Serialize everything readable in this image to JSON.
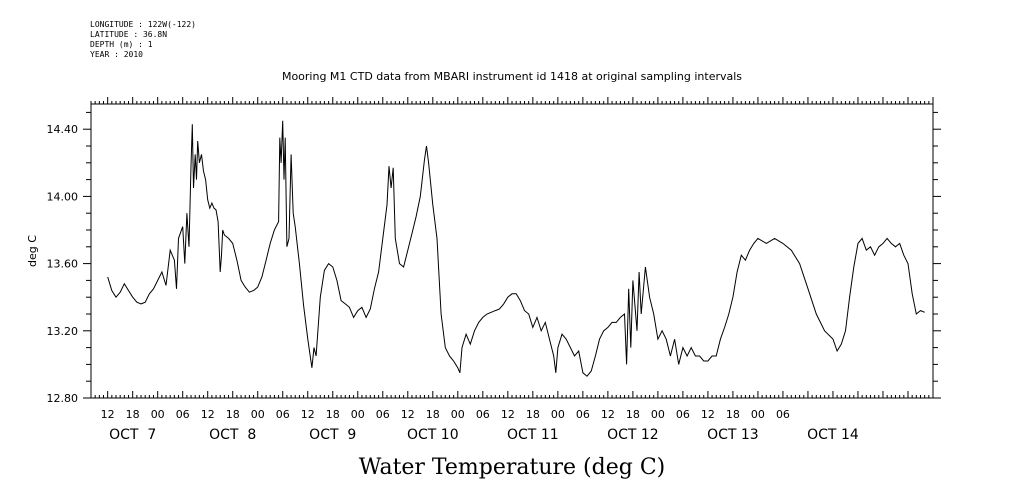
{
  "header": {
    "meta_lines": [
      "LONGITUDE : 122W(-122)",
      "LATITUDE : 36.8N",
      "DEPTH (m) : 1",
      "YEAR : 2010"
    ],
    "title": "Mooring M1 CTD data from MBARI instrument id 1418 at original sampling intervals"
  },
  "chart_data": {
    "type": "line",
    "title": "Mooring M1 CTD data from MBARI instrument id 1418 at original sampling intervals",
    "xlabel": "Water Temperature (deg C)",
    "ylabel": "deg C",
    "ylim": [
      12.8,
      14.55
    ],
    "yticks": [
      "12.80",
      "13.20",
      "13.60",
      "14.00",
      "14.40"
    ],
    "hour_labels": [
      "12",
      "18",
      "00",
      "06",
      "12",
      "18",
      "00",
      "06",
      "12",
      "18",
      "00",
      "06",
      "12",
      "18",
      "00",
      "06",
      "12",
      "18",
      "00",
      "06",
      "12",
      "18",
      "00",
      "06",
      "12",
      "18",
      "00",
      "06"
    ],
    "day_labels": [
      "OCT  7",
      "OCT  8",
      "OCT  9",
      "OCT 10",
      "OCT 11",
      "OCT 12",
      "OCT 13",
      "OCT 14"
    ],
    "grid": false,
    "series": [
      {
        "color": "#000000",
        "points": [
          [
            4,
            13.52
          ],
          [
            5,
            13.44
          ],
          [
            6,
            13.4
          ],
          [
            7,
            13.43
          ],
          [
            8,
            13.48
          ],
          [
            9,
            13.44
          ],
          [
            10,
            13.4
          ],
          [
            11,
            13.37
          ],
          [
            12,
            13.36
          ],
          [
            13,
            13.37
          ],
          [
            14,
            13.42
          ],
          [
            15,
            13.45
          ],
          [
            16,
            13.5
          ],
          [
            17,
            13.55
          ],
          [
            18,
            13.47
          ],
          [
            19,
            13.68
          ],
          [
            20,
            13.62
          ],
          [
            20.5,
            13.45
          ],
          [
            21,
            13.75
          ],
          [
            22,
            13.82
          ],
          [
            22.5,
            13.6
          ],
          [
            23,
            13.9
          ],
          [
            23.5,
            13.7
          ],
          [
            24,
            14.18
          ],
          [
            24.3,
            14.43
          ],
          [
            24.6,
            14.05
          ],
          [
            25,
            14.25
          ],
          [
            25.3,
            14.1
          ],
          [
            25.6,
            14.33
          ],
          [
            26,
            14.2
          ],
          [
            26.5,
            14.25
          ],
          [
            27,
            14.15
          ],
          [
            27.5,
            14.1
          ],
          [
            28,
            13.98
          ],
          [
            28.5,
            13.93
          ],
          [
            29,
            13.96
          ],
          [
            29.5,
            13.93
          ],
          [
            30,
            13.92
          ],
          [
            30.5,
            13.85
          ],
          [
            31,
            13.55
          ],
          [
            31.3,
            13.65
          ],
          [
            31.6,
            13.8
          ],
          [
            32,
            13.77
          ],
          [
            33,
            13.75
          ],
          [
            34,
            13.72
          ],
          [
            35,
            13.62
          ],
          [
            36,
            13.5
          ],
          [
            37,
            13.46
          ],
          [
            38,
            13.43
          ],
          [
            39,
            13.44
          ],
          [
            40,
            13.46
          ],
          [
            41,
            13.52
          ],
          [
            42,
            13.62
          ],
          [
            43,
            13.72
          ],
          [
            44,
            13.8
          ],
          [
            45,
            13.85
          ],
          [
            45.3,
            14.35
          ],
          [
            45.6,
            14.2
          ],
          [
            46,
            14.45
          ],
          [
            46.3,
            14.1
          ],
          [
            46.6,
            14.35
          ],
          [
            47,
            13.7
          ],
          [
            47.5,
            13.75
          ],
          [
            48,
            14.25
          ],
          [
            48.5,
            13.9
          ],
          [
            49,
            13.82
          ],
          [
            50,
            13.6
          ],
          [
            51,
            13.35
          ],
          [
            52,
            13.15
          ],
          [
            53,
            12.98
          ],
          [
            53.5,
            13.1
          ],
          [
            54,
            13.05
          ],
          [
            55,
            13.4
          ],
          [
            56,
            13.56
          ],
          [
            57,
            13.6
          ],
          [
            58,
            13.58
          ],
          [
            59,
            13.5
          ],
          [
            60,
            13.38
          ],
          [
            61,
            13.36
          ],
          [
            62,
            13.34
          ],
          [
            63,
            13.28
          ],
          [
            64,
            13.32
          ],
          [
            65,
            13.34
          ],
          [
            66,
            13.28
          ],
          [
            67,
            13.33
          ],
          [
            68,
            13.45
          ],
          [
            69,
            13.55
          ],
          [
            70,
            13.75
          ],
          [
            71,
            13.95
          ],
          [
            71.5,
            14.18
          ],
          [
            72,
            14.05
          ],
          [
            72.5,
            14.17
          ],
          [
            73,
            13.75
          ],
          [
            74,
            13.6
          ],
          [
            75,
            13.58
          ],
          [
            76,
            13.68
          ],
          [
            77,
            13.78
          ],
          [
            78,
            13.88
          ],
          [
            79,
            14.0
          ],
          [
            80,
            14.22
          ],
          [
            80.5,
            14.3
          ],
          [
            81,
            14.2
          ],
          [
            82,
            13.95
          ],
          [
            83,
            13.75
          ],
          [
            84,
            13.3
          ],
          [
            85,
            13.1
          ],
          [
            86,
            13.05
          ],
          [
            87,
            13.02
          ],
          [
            88,
            12.98
          ],
          [
            88.5,
            12.95
          ],
          [
            89,
            13.1
          ],
          [
            90,
            13.18
          ],
          [
            91,
            13.12
          ],
          [
            92,
            13.2
          ],
          [
            93,
            13.25
          ],
          [
            94,
            13.28
          ],
          [
            95,
            13.3
          ],
          [
            96,
            13.31
          ],
          [
            97,
            13.32
          ],
          [
            98,
            13.33
          ],
          [
            99,
            13.36
          ],
          [
            100,
            13.4
          ],
          [
            101,
            13.42
          ],
          [
            102,
            13.42
          ],
          [
            103,
            13.38
          ],
          [
            104,
            13.32
          ],
          [
            105,
            13.3
          ],
          [
            106,
            13.22
          ],
          [
            107,
            13.28
          ],
          [
            108,
            13.2
          ],
          [
            109,
            13.25
          ],
          [
            110,
            13.15
          ],
          [
            111,
            13.05
          ],
          [
            111.5,
            12.95
          ],
          [
            112,
            13.1
          ],
          [
            113,
            13.18
          ],
          [
            114,
            13.15
          ],
          [
            115,
            13.1
          ],
          [
            116,
            13.05
          ],
          [
            117,
            13.08
          ],
          [
            118,
            12.95
          ],
          [
            119,
            12.93
          ],
          [
            120,
            12.96
          ],
          [
            121,
            13.05
          ],
          [
            122,
            13.15
          ],
          [
            123,
            13.2
          ],
          [
            124,
            13.22
          ],
          [
            125,
            13.25
          ],
          [
            126,
            13.25
          ],
          [
            127,
            13.28
          ],
          [
            128,
            13.3
          ],
          [
            128.5,
            13.0
          ],
          [
            129,
            13.45
          ],
          [
            129.5,
            13.1
          ],
          [
            130,
            13.5
          ],
          [
            131,
            13.2
          ],
          [
            131.5,
            13.55
          ],
          [
            132,
            13.3
          ],
          [
            133,
            13.58
          ],
          [
            134,
            13.4
          ],
          [
            135,
            13.3
          ],
          [
            136,
            13.15
          ],
          [
            137,
            13.2
          ],
          [
            138,
            13.15
          ],
          [
            139,
            13.05
          ],
          [
            140,
            13.15
          ],
          [
            141,
            13.0
          ],
          [
            142,
            13.1
          ],
          [
            143,
            13.05
          ],
          [
            144,
            13.1
          ],
          [
            145,
            13.05
          ],
          [
            146,
            13.05
          ],
          [
            147,
            13.02
          ],
          [
            148,
            13.02
          ],
          [
            149,
            13.05
          ],
          [
            150,
            13.05
          ],
          [
            151,
            13.15
          ],
          [
            152,
            13.22
          ],
          [
            153,
            13.3
          ],
          [
            154,
            13.4
          ],
          [
            155,
            13.55
          ],
          [
            156,
            13.65
          ],
          [
            157,
            13.62
          ],
          [
            158,
            13.68
          ],
          [
            159,
            13.72
          ],
          [
            160,
            13.75
          ],
          [
            162,
            13.72
          ],
          [
            164,
            13.75
          ],
          [
            166,
            13.72
          ],
          [
            168,
            13.68
          ],
          [
            170,
            13.6
          ],
          [
            172,
            13.45
          ],
          [
            174,
            13.3
          ],
          [
            176,
            13.2
          ],
          [
            178,
            13.15
          ],
          [
            179,
            13.08
          ],
          [
            180,
            13.12
          ],
          [
            181,
            13.2
          ],
          [
            182,
            13.4
          ],
          [
            183,
            13.58
          ],
          [
            184,
            13.72
          ],
          [
            185,
            13.75
          ],
          [
            186,
            13.68
          ],
          [
            187,
            13.7
          ],
          [
            188,
            13.65
          ],
          [
            189,
            13.7
          ],
          [
            190,
            13.72
          ],
          [
            191,
            13.75
          ],
          [
            192,
            13.72
          ],
          [
            193,
            13.7
          ],
          [
            194,
            13.72
          ],
          [
            195,
            13.65
          ],
          [
            196,
            13.6
          ],
          [
            197,
            13.42
          ],
          [
            198,
            13.3
          ],
          [
            199,
            13.32
          ],
          [
            200,
            13.31
          ]
        ]
      }
    ]
  }
}
